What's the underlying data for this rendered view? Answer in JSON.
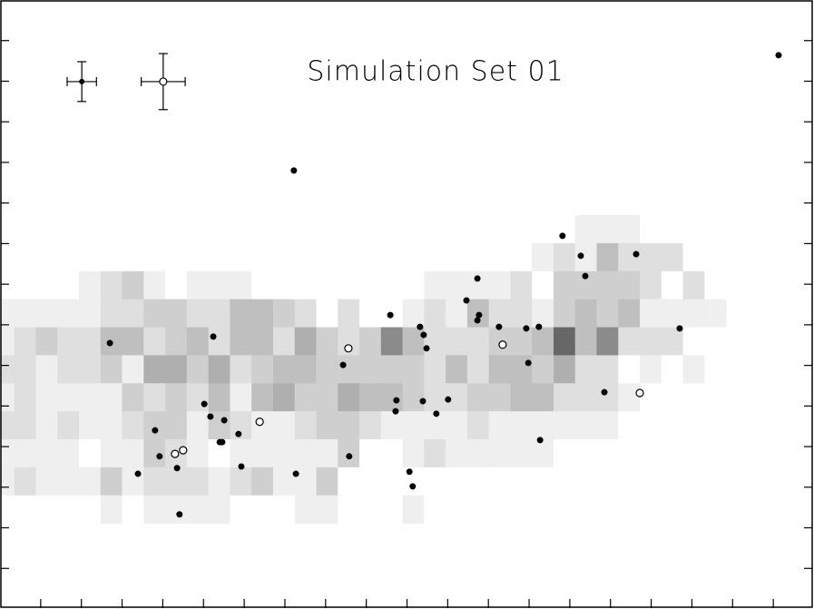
{
  "chart_data": {
    "type": "scatter",
    "title": "Simulation Set 01",
    "xlim": [
      0,
      20
    ],
    "ylim": [
      0,
      15
    ],
    "xticks": [
      1,
      2,
      3,
      4,
      5,
      6,
      7,
      8,
      9,
      10,
      11,
      12,
      13,
      14,
      15,
      16,
      17,
      18,
      19
    ],
    "yticks": [
      1,
      2,
      3,
      4,
      5,
      6,
      7,
      8,
      9,
      10,
      11,
      12,
      13,
      14
    ],
    "heatmap": {
      "x0": -0.18,
      "dx": 0.53,
      "y0": 9.7,
      "dy": 0.69,
      "values": [
        [
          0,
          0,
          0,
          0,
          0,
          0,
          0,
          0,
          0,
          0,
          0,
          0,
          0,
          0,
          0,
          0,
          0,
          0,
          0,
          0,
          0,
          0,
          0,
          0,
          0,
          0,
          0,
          1,
          1,
          1,
          0,
          0,
          0,
          0
        ],
        [
          0,
          0,
          0,
          0,
          0,
          0,
          0,
          0,
          0,
          0,
          0,
          0,
          0,
          0,
          0,
          0,
          0,
          0,
          0,
          0,
          0,
          0,
          0,
          0,
          0,
          1,
          2,
          1,
          4,
          2,
          2,
          2,
          0,
          0
        ],
        [
          0,
          0,
          0,
          0,
          1,
          2,
          3,
          1,
          0,
          1,
          1,
          1,
          0,
          0,
          0,
          0,
          0,
          0,
          0,
          0,
          1,
          1,
          1,
          1,
          2,
          0,
          3,
          3,
          3,
          3,
          2,
          0,
          2,
          0
        ],
        [
          1,
          1,
          1,
          1,
          1,
          2,
          2,
          3,
          3,
          2,
          2,
          4,
          4,
          3,
          2,
          0,
          2,
          0,
          0,
          1,
          2,
          1,
          4,
          2,
          2,
          1,
          3,
          4,
          3,
          4,
          1,
          1,
          1,
          1
        ],
        [
          1,
          2,
          3,
          2,
          2,
          4,
          4,
          2,
          3,
          4,
          2,
          4,
          4,
          2,
          5,
          3,
          2,
          3,
          6,
          4,
          2,
          2,
          2,
          3,
          3,
          4,
          7,
          4,
          6,
          2,
          2,
          2,
          0,
          0
        ],
        [
          2,
          2,
          1,
          2,
          2,
          3,
          1,
          5,
          5,
          3,
          5,
          2,
          3,
          4,
          4,
          3,
          3,
          3,
          3,
          3,
          2,
          4,
          2,
          4,
          4,
          3,
          5,
          2,
          2,
          0,
          1,
          0,
          1,
          0
        ],
        [
          1,
          2,
          1,
          1,
          1,
          1,
          3,
          2,
          3,
          2,
          4,
          1,
          4,
          5,
          3,
          3,
          5,
          4,
          4,
          3,
          2,
          2,
          3,
          3,
          4,
          4,
          2,
          2,
          2,
          1,
          0,
          0,
          0,
          0
        ],
        [
          2,
          2,
          1,
          2,
          1,
          1,
          2,
          3,
          3,
          1,
          3,
          2,
          1,
          1,
          2,
          3,
          3,
          2,
          1,
          1,
          1,
          1,
          2,
          1,
          1,
          1,
          1,
          1,
          1,
          0,
          0,
          0,
          0,
          0
        ],
        [
          1,
          1,
          1,
          1,
          0,
          1,
          1,
          3,
          2,
          1,
          0,
          1,
          1,
          1,
          1,
          1,
          3,
          0,
          0,
          1,
          2,
          1,
          1,
          1,
          1,
          1,
          0,
          0,
          0,
          0,
          0,
          0,
          0,
          0
        ],
        [
          1,
          2,
          1,
          1,
          1,
          3,
          1,
          2,
          2,
          2,
          1,
          2,
          3,
          1,
          1,
          3,
          0,
          0,
          0,
          0,
          0,
          0,
          0,
          0,
          0,
          0,
          0,
          0,
          0,
          0,
          0,
          0,
          0,
          0
        ],
        [
          0,
          0,
          0,
          0,
          0,
          1,
          0,
          1,
          1,
          1,
          1,
          0,
          0,
          0,
          1,
          1,
          0,
          0,
          0,
          1,
          0,
          0,
          0,
          0,
          0,
          0,
          0,
          0,
          0,
          0,
          0,
          0,
          0,
          0
        ]
      ]
    },
    "series": [
      {
        "marker": "filled",
        "color": "#000000",
        "x": [
          19.13,
          7.22,
          13.82,
          14.27,
          15.63,
          14.38,
          11.73,
          11.46,
          9.59,
          11.77,
          11.73,
          10.32,
          10.41,
          12.26,
          12.93,
          13.24,
          16.7,
          2.7,
          5.24,
          10.48,
          8.43,
          12.98,
          14.85,
          9.74,
          10.39,
          11.01,
          9.72,
          10.72,
          5.02,
          5.17,
          5.51,
          3.81,
          5.86,
          5.46,
          5.4,
          13.27,
          3.92,
          8.58,
          5.93,
          4.35,
          3.39,
          7.27,
          10.06,
          10.14,
          4.41
        ],
        "y": [
          13.64,
          10.8,
          9.19,
          8.7,
          8.74,
          8.2,
          8.14,
          7.6,
          7.24,
          7.24,
          7.11,
          6.95,
          6.75,
          6.95,
          6.91,
          6.95,
          6.91,
          6.55,
          6.71,
          6.42,
          6.01,
          6.06,
          5.34,
          5.14,
          5.12,
          5.16,
          4.87,
          4.81,
          5.05,
          4.74,
          4.65,
          4.4,
          4.31,
          4.11,
          4.11,
          4.16,
          3.76,
          3.76,
          3.51,
          3.47,
          3.33,
          3.33,
          3.38,
          3.02,
          2.33
        ]
      },
      {
        "marker": "open",
        "color": "#000000",
        "x": [
          8.56,
          12.35,
          15.72,
          6.38,
          4.5,
          4.3
        ],
        "y": [
          6.42,
          6.51,
          5.32,
          4.61,
          3.91,
          3.82
        ]
      }
    ],
    "error_legend": [
      {
        "marker": "filled",
        "x": 2.01,
        "y": 12.99,
        "xerr": 0.36,
        "yerr": 0.49
      },
      {
        "marker": "open",
        "x": 4.01,
        "y": 12.99,
        "xerr": 0.54,
        "yerr": 0.69
      }
    ]
  }
}
